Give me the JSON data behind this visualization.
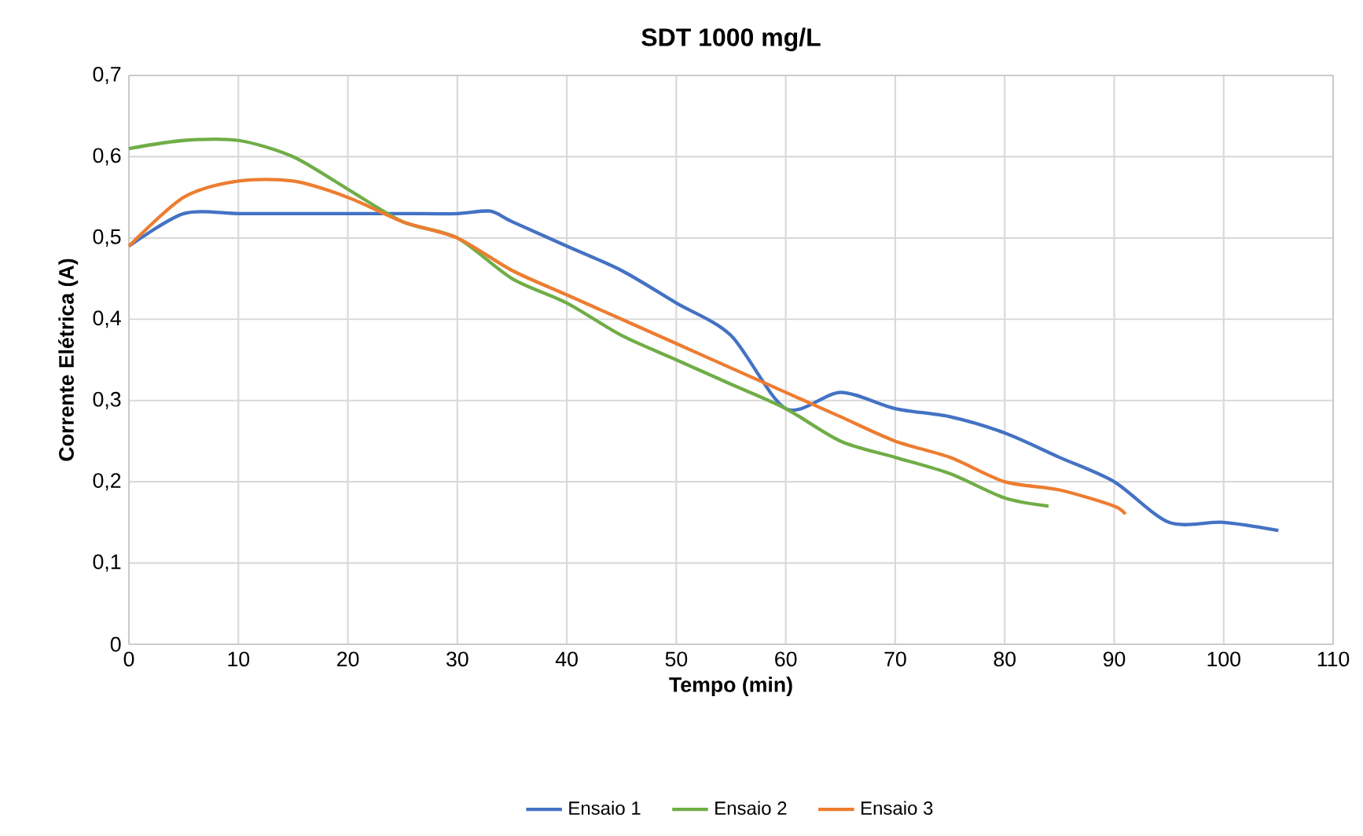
{
  "chart_data": {
    "type": "line",
    "title": "SDT 1000 mg/L",
    "xlabel": "Tempo (min)",
    "ylabel": "Corrente Elétrica (A)",
    "xlim": [
      0,
      110
    ],
    "xticks": [
      0,
      10,
      20,
      30,
      40,
      50,
      60,
      70,
      80,
      90,
      100,
      110
    ],
    "ylim": [
      0,
      0.7
    ],
    "yticks": [
      {
        "value": 0,
        "label": "0"
      },
      {
        "value": 0.1,
        "label": "0,1"
      },
      {
        "value": 0.2,
        "label": "0,2"
      },
      {
        "value": 0.3,
        "label": "0,3"
      },
      {
        "value": 0.4,
        "label": "0,4"
      },
      {
        "value": 0.5,
        "label": "0,5"
      },
      {
        "value": 0.6,
        "label": "0,6"
      },
      {
        "value": 0.7,
        "label": "0,7"
      }
    ],
    "grid": true,
    "legend": "bottom",
    "marker": "none",
    "line_style": "solid",
    "series": [
      {
        "name": "Ensaio 1",
        "color": "#4472c4",
        "x": [
          0,
          5,
          10,
          15,
          20,
          25,
          30,
          33,
          35,
          40,
          45,
          50,
          55,
          60,
          65,
          70,
          75,
          80,
          85,
          90,
          95,
          100,
          105
        ],
        "values": [
          0.49,
          0.53,
          0.53,
          0.53,
          0.53,
          0.53,
          0.53,
          0.533,
          0.52,
          0.49,
          0.46,
          0.42,
          0.38,
          0.29,
          0.31,
          0.29,
          0.28,
          0.26,
          0.23,
          0.2,
          0.15,
          0.15,
          0.14
        ]
      },
      {
        "name": "Ensaio 2",
        "color": "#70ad47",
        "x": [
          0,
          5,
          10,
          15,
          20,
          25,
          30,
          35,
          40,
          45,
          50,
          55,
          60,
          65,
          70,
          75,
          80,
          84
        ],
        "values": [
          0.61,
          0.62,
          0.62,
          0.6,
          0.56,
          0.52,
          0.5,
          0.45,
          0.42,
          0.38,
          0.35,
          0.32,
          0.29,
          0.25,
          0.23,
          0.21,
          0.18,
          0.17
        ]
      },
      {
        "name": "Ensaio 3",
        "color": "#ed7d31",
        "x": [
          0,
          5,
          10,
          15,
          20,
          25,
          30,
          35,
          40,
          45,
          50,
          55,
          60,
          65,
          70,
          75,
          80,
          85,
          90,
          91
        ],
        "values": [
          0.49,
          0.55,
          0.57,
          0.57,
          0.55,
          0.52,
          0.5,
          0.46,
          0.43,
          0.4,
          0.37,
          0.34,
          0.31,
          0.28,
          0.25,
          0.23,
          0.2,
          0.19,
          0.17,
          0.16
        ]
      }
    ]
  }
}
